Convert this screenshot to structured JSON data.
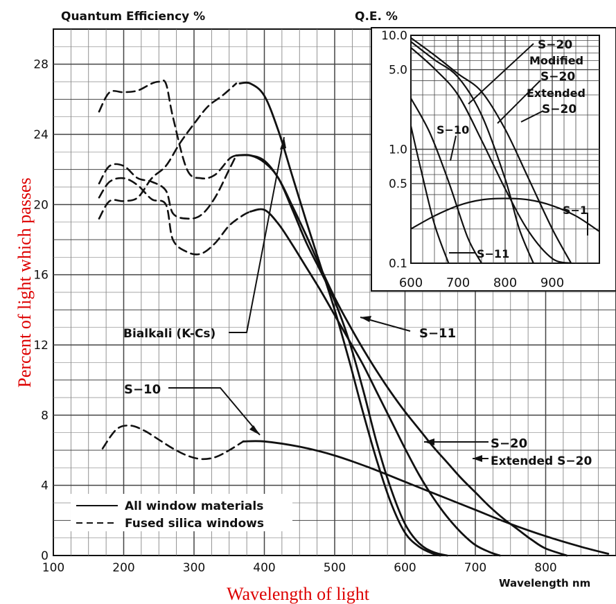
{
  "chart_data": [
    {
      "type": "line",
      "title": "Quantum Efficiency %",
      "xlabel": "Wavelength of light",
      "ylabel": "Percent of light which passes",
      "x_unit_label": "Wavelength nm",
      "xlim": [
        100,
        900
      ],
      "ylim": [
        0,
        30
      ],
      "x_ticks": [
        100,
        200,
        300,
        400,
        500,
        600,
        700,
        800
      ],
      "y_ticks": [
        0,
        4,
        8,
        12,
        16,
        20,
        24,
        28
      ],
      "grid": true,
      "legend": {
        "position": "bottom-left",
        "items": [
          {
            "label": "All window materials",
            "style": "solid"
          },
          {
            "label": "Fused silica windows",
            "style": "dashed"
          }
        ]
      },
      "series": [
        {
          "name": "Bialkali (K-Cs)",
          "style": "solid",
          "x": [
            365,
            380,
            400,
            420,
            440,
            460,
            480,
            500,
            520,
            540,
            560,
            580,
            600,
            620,
            640,
            650
          ],
          "y": [
            26.9,
            26.9,
            26.2,
            24.2,
            21.6,
            19.0,
            16.5,
            14.0,
            11.2,
            8.2,
            5.4,
            3.0,
            1.3,
            0.5,
            0.1,
            0
          ]
        },
        {
          "name": "Bialkali (K-Cs)",
          "style": "dashed",
          "x": [
            165,
            180,
            200,
            220,
            240,
            260,
            280,
            300,
            320,
            340,
            360
          ],
          "y": [
            19.2,
            20.2,
            20.2,
            20.4,
            21.5,
            22.2,
            23.5,
            24.6,
            25.6,
            26.2,
            26.9
          ]
        },
        {
          "name": "S-11",
          "style": "solid",
          "x": [
            360,
            380,
            400,
            420,
            440,
            460,
            480,
            500,
            520,
            540,
            560,
            580,
            600,
            620,
            640,
            660
          ],
          "y": [
            22.8,
            22.8,
            22.4,
            21.5,
            19.7,
            17.8,
            16.2,
            14.5,
            12.3,
            9.5,
            6.4,
            3.8,
            1.8,
            0.7,
            0.2,
            0
          ]
        },
        {
          "name": "S-11",
          "style": "dashed",
          "x": [
            165,
            180,
            200,
            220,
            240,
            260,
            270,
            290,
            310,
            330,
            350,
            360
          ],
          "y": [
            21.2,
            22.2,
            22.2,
            21.5,
            21.3,
            20.8,
            19.5,
            19.2,
            19.4,
            20.4,
            22.0,
            22.8
          ]
        },
        {
          "name": "S-20",
          "style": "solid",
          "x": [
            380,
            400,
            420,
            440,
            460,
            480,
            500,
            520,
            540,
            560,
            580,
            600,
            620,
            640,
            660,
            680,
            700,
            720,
            735
          ],
          "y": [
            19.6,
            19.7,
            18.9,
            17.7,
            16.4,
            15.1,
            13.7,
            12.3,
            10.9,
            9.3,
            7.7,
            6.1,
            4.6,
            3.3,
            2.2,
            1.3,
            0.6,
            0.2,
            0
          ]
        },
        {
          "name": "S-20",
          "style": "dashed",
          "x": [
            165,
            180,
            200,
            220,
            240,
            260,
            270,
            290,
            310,
            330,
            350,
            370,
            380
          ],
          "y": [
            20.4,
            21.3,
            21.5,
            21.1,
            20.3,
            20.0,
            18.0,
            17.3,
            17.2,
            17.8,
            18.8,
            19.4,
            19.6
          ]
        },
        {
          "name": "Extended S-20",
          "style": "solid",
          "x": [
            360,
            380,
            400,
            420,
            440,
            460,
            480,
            500,
            520,
            540,
            560,
            580,
            600,
            620,
            640,
            660,
            680,
            700,
            720,
            740,
            760,
            780,
            800,
            830
          ],
          "y": [
            22.8,
            22.8,
            22.5,
            21.5,
            19.9,
            18.2,
            16.4,
            14.7,
            13.2,
            11.8,
            10.5,
            9.3,
            8.2,
            7.2,
            6.2,
            5.3,
            4.4,
            3.6,
            2.8,
            2.1,
            1.5,
            0.9,
            0.4,
            0
          ]
        },
        {
          "name": "Extended S-20",
          "style": "dashed",
          "x": [
            165,
            180,
            200,
            220,
            240,
            250,
            260,
            270,
            290,
            310,
            330,
            350,
            360
          ],
          "y": [
            25.3,
            26.4,
            26.4,
            26.5,
            26.9,
            27.0,
            26.9,
            25.0,
            22.0,
            21.5,
            21.7,
            22.6,
            22.8
          ]
        },
        {
          "name": "S-10",
          "style": "solid",
          "x": [
            370,
            400,
            450,
            500,
            550,
            600,
            650,
            700,
            750,
            800,
            850,
            889
          ],
          "y": [
            6.5,
            6.5,
            6.2,
            5.7,
            5.0,
            4.2,
            3.4,
            2.6,
            1.8,
            1.1,
            0.5,
            0.1
          ]
        },
        {
          "name": "S-10",
          "style": "dashed",
          "x": [
            170,
            190,
            210,
            230,
            250,
            270,
            290,
            310,
            330,
            350,
            370
          ],
          "y": [
            6.1,
            7.2,
            7.4,
            7.1,
            6.6,
            6.1,
            5.7,
            5.5,
            5.6,
            6.0,
            6.5
          ]
        }
      ]
    },
    {
      "type": "line",
      "title": "Q.E. %",
      "xlim": [
        600,
        1000
      ],
      "ylim": [
        0.1,
        10.0
      ],
      "y_scale": "log",
      "x_ticks": [
        600,
        700,
        800,
        900
      ],
      "y_ticks": [
        0.1,
        0.5,
        1.0,
        5.0,
        10.0
      ],
      "grid": true,
      "series": [
        {
          "name": "S-20",
          "x": [
            600,
            650,
            700,
            750,
            800,
            850,
            900,
            940
          ],
          "y": [
            7.8,
            5.1,
            3.0,
            1.2,
            0.45,
            0.19,
            0.11,
            0.1
          ]
        },
        {
          "name": "Modified S-20",
          "x": [
            600,
            650,
            700,
            750,
            800,
            830,
            860
          ],
          "y": [
            8.8,
            6.1,
            4.3,
            2.0,
            0.55,
            0.2,
            0.1
          ]
        },
        {
          "name": "Extended S-20",
          "x": [
            600,
            650,
            700,
            750,
            800,
            850,
            900,
            940
          ],
          "y": [
            9.5,
            6.7,
            4.6,
            3.2,
            1.5,
            0.55,
            0.2,
            0.1
          ]
        },
        {
          "name": "S-10",
          "x": [
            600,
            640,
            680,
            720,
            750
          ],
          "y": [
            2.8,
            1.4,
            0.52,
            0.17,
            0.1
          ]
        },
        {
          "name": "S-11",
          "x": [
            600,
            620,
            650,
            680
          ],
          "y": [
            1.6,
            0.7,
            0.22,
            0.1
          ]
        },
        {
          "name": "S-1",
          "x": [
            600,
            650,
            700,
            750,
            800,
            850,
            900,
            950,
            1000
          ],
          "y": [
            0.2,
            0.26,
            0.32,
            0.36,
            0.37,
            0.36,
            0.32,
            0.26,
            0.19
          ]
        }
      ]
    }
  ],
  "labels": {
    "main_title": "Quantum Efficiency %",
    "inset_title": "Q.E. %",
    "xlabel": "Wavelength of light",
    "ylabel": "Percent of light which passes",
    "x_unit_label": "Wavelength nm",
    "bialkali": "Bialkali (K-Cs)",
    "s11": "S−11",
    "s10": "S−10",
    "s20": "S−20",
    "ext_s20": "Extended S−20",
    "legend_solid": "All window materials",
    "legend_dashed": "Fused silica windows",
    "inset_s20": "S−20",
    "inset_modified": "Modified",
    "inset_mod_s20": "S−20",
    "inset_extended": "Extended",
    "inset_ext_s20": "S−20",
    "inset_s10": "S−10",
    "inset_s11": "S−11",
    "inset_s1": "S−1",
    "x_tick_labels": [
      "100",
      "200",
      "300",
      "400",
      "500",
      "600",
      "700",
      "800"
    ],
    "y_tick_labels": [
      "0",
      "4",
      "8",
      "12",
      "16",
      "20",
      "24",
      "28"
    ],
    "inset_x_tick_labels": [
      "600",
      "700",
      "800",
      "900"
    ],
    "inset_y_tick_labels": [
      "10.0",
      "5.0",
      "1.0",
      "0.5",
      "0.1"
    ]
  },
  "colors": {
    "ink": "#111111",
    "axis_title": "#dd0000",
    "background": "#ffffff"
  }
}
